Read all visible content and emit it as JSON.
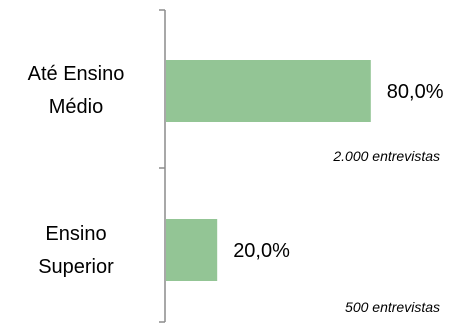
{
  "chart_data": {
    "type": "bar",
    "orientation": "horizontal",
    "categories": [
      [
        "Até Ensino",
        "Médio"
      ],
      [
        "Ensino",
        "Superior"
      ]
    ],
    "values": [
      80.0,
      20.0
    ],
    "value_labels": [
      "80,0%",
      "20,0%"
    ],
    "annotations": [
      "2.000 entrevistas",
      "500 entrevistas"
    ],
    "xlim": [
      0,
      100
    ],
    "unit": "%",
    "grid": false,
    "legend": "none",
    "bar_color": "#93c595",
    "axis_color": "#8c8c8c",
    "title": "",
    "xlabel": "",
    "ylabel": ""
  }
}
